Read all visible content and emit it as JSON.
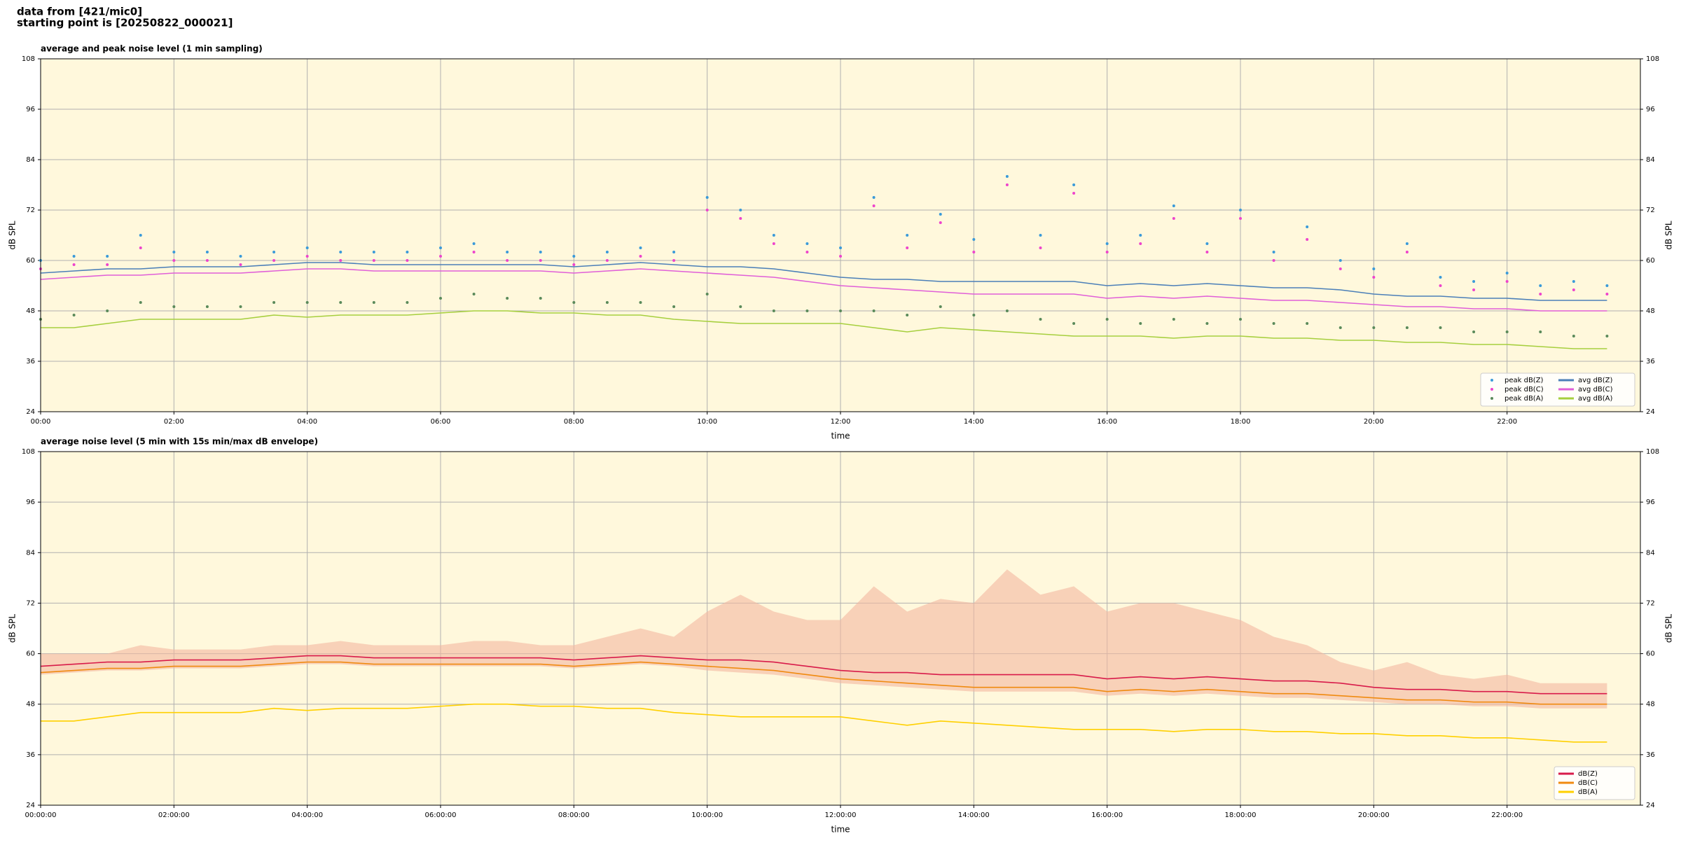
{
  "header": {
    "lines": [
      "data from [421/mic0]",
      "starting point is [20250822_000021]"
    ]
  },
  "chart_data": [
    {
      "type": "line",
      "title": "average and peak noise level (1 min sampling)",
      "x_label": "time",
      "y_label": "dB SPL",
      "xlim": [
        0,
        24
      ],
      "ylim": [
        24,
        108
      ],
      "xticks": [
        {
          "value": 0,
          "label": "00:00"
        },
        {
          "value": 2,
          "label": "02:00"
        },
        {
          "value": 4,
          "label": "04:00"
        },
        {
          "value": 6,
          "label": "06:00"
        },
        {
          "value": 8,
          "label": "08:00"
        },
        {
          "value": 10,
          "label": "10:00"
        },
        {
          "value": 12,
          "label": "12:00"
        },
        {
          "value": 14,
          "label": "14:00"
        },
        {
          "value": 16,
          "label": "16:00"
        },
        {
          "value": 18,
          "label": "18:00"
        },
        {
          "value": 20,
          "label": "20:00"
        },
        {
          "value": 22,
          "label": "22:00"
        }
      ],
      "yticks": [
        24,
        36,
        48,
        60,
        72,
        84,
        96,
        108
      ],
      "grid": true,
      "background": "#fff8dc",
      "legend": "lower right",
      "legend_columns": 2,
      "x": [
        0,
        0.5,
        1,
        1.5,
        2,
        2.5,
        3,
        3.5,
        4,
        4.5,
        5,
        5.5,
        6,
        6.5,
        7,
        7.5,
        8,
        8.5,
        9,
        9.5,
        10,
        10.5,
        11,
        11.5,
        12,
        12.5,
        13,
        13.5,
        14,
        14.5,
        15,
        15.5,
        16,
        16.5,
        17,
        17.5,
        18,
        18.5,
        19,
        19.5,
        20,
        20.5,
        21,
        21.5,
        22,
        22.5,
        23,
        23.5
      ],
      "series": [
        {
          "name": "peak dB(Z)",
          "color": "#3a9ad9",
          "marker": "dot",
          "values": [
            60,
            61,
            61,
            66,
            62,
            62,
            61,
            62,
            63,
            62,
            62,
            62,
            63,
            64,
            62,
            62,
            61,
            62,
            63,
            62,
            75,
            72,
            66,
            64,
            63,
            75,
            66,
            71,
            65,
            80,
            66,
            78,
            64,
            66,
            73,
            64,
            72,
            62,
            68,
            60,
            58,
            64,
            56,
            55,
            57,
            54,
            55,
            54
          ]
        },
        {
          "name": "peak dB(C)",
          "color": "#ee44cc",
          "marker": "dot",
          "values": [
            58,
            59,
            59,
            63,
            60,
            60,
            59,
            60,
            61,
            60,
            60,
            60,
            61,
            62,
            60,
            60,
            59,
            60,
            61,
            60,
            72,
            70,
            64,
            62,
            61,
            73,
            63,
            69,
            62,
            78,
            63,
            76,
            62,
            64,
            70,
            62,
            70,
            60,
            65,
            58,
            56,
            62,
            54,
            53,
            55,
            52,
            53,
            52
          ]
        },
        {
          "name": "peak dB(A)",
          "color": "#5a8a5a",
          "marker": "dot",
          "values": [
            46,
            47,
            48,
            50,
            49,
            49,
            49,
            50,
            50,
            50,
            50,
            50,
            51,
            52,
            51,
            51,
            50,
            50,
            50,
            49,
            52,
            49,
            48,
            48,
            48,
            48,
            47,
            49,
            47,
            48,
            46,
            45,
            46,
            45,
            46,
            45,
            46,
            45,
            45,
            44,
            44,
            44,
            44,
            43,
            43,
            43,
            42,
            42
          ]
        },
        {
          "name": "avg dB(Z)",
          "color": "#4b7fb8",
          "marker": "line",
          "values": [
            57,
            57.5,
            58,
            58,
            58.5,
            58.5,
            58.5,
            59,
            59.5,
            59.5,
            59,
            59,
            59,
            59,
            59,
            59,
            58.5,
            59,
            59.5,
            59,
            58.5,
            58.5,
            58,
            57,
            56,
            55.5,
            55.5,
            55,
            55,
            55,
            55,
            55,
            54,
            54.5,
            54,
            54.5,
            54,
            53.5,
            53.5,
            53,
            52,
            51.5,
            51.5,
            51,
            51,
            50.5,
            50.5,
            50.5
          ]
        },
        {
          "name": "avg dB(C)",
          "color": "#e05fd8",
          "marker": "line",
          "values": [
            55.5,
            56,
            56.5,
            56.5,
            57,
            57,
            57,
            57.5,
            58,
            58,
            57.5,
            57.5,
            57.5,
            57.5,
            57.5,
            57.5,
            57,
            57.5,
            58,
            57.5,
            57,
            56.5,
            56,
            55,
            54,
            53.5,
            53,
            52.5,
            52,
            52,
            52,
            52,
            51,
            51.5,
            51,
            51.5,
            51,
            50.5,
            50.5,
            50,
            49.5,
            49,
            49,
            48.5,
            48.5,
            48,
            48,
            48
          ]
        },
        {
          "name": "avg dB(A)",
          "color": "#a6cf3e",
          "marker": "line",
          "values": [
            44,
            44,
            45,
            46,
            46,
            46,
            46,
            47,
            46.5,
            47,
            47,
            47,
            47.5,
            48,
            48,
            47.5,
            47.5,
            47,
            47,
            46,
            45.5,
            45,
            45,
            45,
            45,
            44,
            43,
            44,
            43.5,
            43,
            42.5,
            42,
            42,
            42,
            41.5,
            42,
            42,
            41.5,
            41.5,
            41,
            41,
            40.5,
            40.5,
            40,
            40,
            39.5,
            39,
            39
          ]
        }
      ]
    },
    {
      "type": "line",
      "title": "average noise level (5 min with 15s min/max dB envelope)",
      "x_label": "time",
      "y_label": "dB SPL",
      "xlim": [
        0,
        24
      ],
      "ylim": [
        24,
        108
      ],
      "xticks": [
        {
          "value": 0,
          "label": "00:00:00"
        },
        {
          "value": 2,
          "label": "02:00:00"
        },
        {
          "value": 4,
          "label": "04:00:00"
        },
        {
          "value": 6,
          "label": "06:00:00"
        },
        {
          "value": 8,
          "label": "08:00:00"
        },
        {
          "value": 10,
          "label": "10:00:00"
        },
        {
          "value": 12,
          "label": "12:00:00"
        },
        {
          "value": 14,
          "label": "14:00:00"
        },
        {
          "value": 16,
          "label": "16:00:00"
        },
        {
          "value": 18,
          "label": "18:00:00"
        },
        {
          "value": 20,
          "label": "20:00:00"
        },
        {
          "value": 22,
          "label": "22:00:00"
        }
      ],
      "yticks": [
        24,
        36,
        48,
        60,
        72,
        84,
        96,
        108
      ],
      "grid": true,
      "background": "#fff8dc",
      "legend": "lower right",
      "legend_columns": 1,
      "x": [
        0,
        0.5,
        1,
        1.5,
        2,
        2.5,
        3,
        3.5,
        4,
        4.5,
        5,
        5.5,
        6,
        6.5,
        7,
        7.5,
        8,
        8.5,
        9,
        9.5,
        10,
        10.5,
        11,
        11.5,
        12,
        12.5,
        13,
        13.5,
        14,
        14.5,
        15,
        15.5,
        16,
        16.5,
        17,
        17.5,
        18,
        18.5,
        19,
        19.5,
        20,
        20.5,
        21,
        21.5,
        22,
        22.5,
        23,
        23.5
      ],
      "band": {
        "color": "#f4b8a0",
        "upper": [
          60,
          60,
          60,
          62,
          61,
          61,
          61,
          62,
          62,
          63,
          62,
          62,
          62,
          63,
          63,
          62,
          62,
          64,
          66,
          64,
          70,
          74,
          70,
          68,
          68,
          76,
          70,
          73,
          72,
          80,
          74,
          76,
          70,
          72,
          72,
          70,
          68,
          64,
          62,
          58,
          56,
          58,
          55,
          54,
          55,
          53,
          53,
          53
        ],
        "lower": [
          55,
          55.5,
          56,
          56,
          56.5,
          56.5,
          56.5,
          57,
          57.5,
          57.5,
          57,
          57,
          57,
          57,
          57,
          57,
          56.5,
          57,
          57.5,
          57,
          56,
          55.5,
          55,
          54,
          53,
          52.5,
          52,
          51.5,
          51,
          51,
          51,
          51,
          50,
          50.5,
          50,
          50.5,
          50,
          49.5,
          49.5,
          49,
          48.5,
          48,
          48,
          47.5,
          47.5,
          47,
          47,
          47
        ]
      },
      "series": [
        {
          "name": "dB(Z)",
          "color": "#d81b4a",
          "marker": "line",
          "values": [
            57,
            57.5,
            58,
            58,
            58.5,
            58.5,
            58.5,
            59,
            59.5,
            59.5,
            59,
            59,
            59,
            59,
            59,
            59,
            58.5,
            59,
            59.5,
            59,
            58.5,
            58.5,
            58,
            57,
            56,
            55.5,
            55.5,
            55,
            55,
            55,
            55,
            55,
            54,
            54.5,
            54,
            54.5,
            54,
            53.5,
            53.5,
            53,
            52,
            51.5,
            51.5,
            51,
            51,
            50.5,
            50.5,
            50.5
          ]
        },
        {
          "name": "dB(C)",
          "color": "#f08a10",
          "marker": "line",
          "values": [
            55.5,
            56,
            56.5,
            56.5,
            57,
            57,
            57,
            57.5,
            58,
            58,
            57.5,
            57.5,
            57.5,
            57.5,
            57.5,
            57.5,
            57,
            57.5,
            58,
            57.5,
            57,
            56.5,
            56,
            55,
            54,
            53.5,
            53,
            52.5,
            52,
            52,
            52,
            52,
            51,
            51.5,
            51,
            51.5,
            51,
            50.5,
            50.5,
            50,
            49.5,
            49,
            49,
            48.5,
            48.5,
            48,
            48,
            48
          ]
        },
        {
          "name": "dB(A)",
          "color": "#ffd000",
          "marker": "line",
          "values": [
            44,
            44,
            45,
            46,
            46,
            46,
            46,
            47,
            46.5,
            47,
            47,
            47,
            47.5,
            48,
            48,
            47.5,
            47.5,
            47,
            47,
            46,
            45.5,
            45,
            45,
            45,
            45,
            44,
            43,
            44,
            43.5,
            43,
            42.5,
            42,
            42,
            42,
            41.5,
            42,
            42,
            41.5,
            41.5,
            41,
            41,
            40.5,
            40.5,
            40,
            40,
            39.5,
            39,
            39
          ]
        }
      ]
    }
  ]
}
